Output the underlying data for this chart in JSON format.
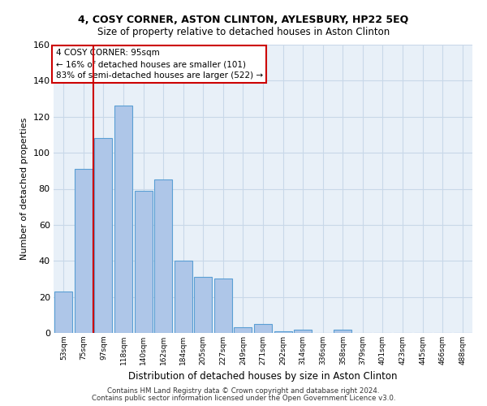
{
  "title1": "4, COSY CORNER, ASTON CLINTON, AYLESBURY, HP22 5EQ",
  "title2": "Size of property relative to detached houses in Aston Clinton",
  "xlabel": "Distribution of detached houses by size in Aston Clinton",
  "ylabel": "Number of detached properties",
  "footer1": "Contains HM Land Registry data © Crown copyright and database right 2024.",
  "footer2": "Contains public sector information licensed under the Open Government Licence v3.0.",
  "categories": [
    "53sqm",
    "75sqm",
    "97sqm",
    "118sqm",
    "140sqm",
    "162sqm",
    "184sqm",
    "205sqm",
    "227sqm",
    "249sqm",
    "271sqm",
    "292sqm",
    "314sqm",
    "336sqm",
    "358sqm",
    "379sqm",
    "401sqm",
    "423sqm",
    "445sqm",
    "466sqm",
    "488sqm"
  ],
  "values": [
    23,
    91,
    108,
    126,
    79,
    85,
    40,
    31,
    30,
    3,
    5,
    1,
    2,
    0,
    2,
    0,
    0,
    0,
    0,
    0,
    0
  ],
  "bar_color": "#aec6e8",
  "bar_edge_color": "#5a9fd4",
  "red_line_index": 2,
  "annotation_text": "4 COSY CORNER: 95sqm\n← 16% of detached houses are smaller (101)\n83% of semi-detached houses are larger (522) →",
  "annotation_box_color": "white",
  "annotation_box_edge": "#cc0000",
  "ylim": [
    0,
    160
  ],
  "yticks": [
    0,
    20,
    40,
    60,
    80,
    100,
    120,
    140,
    160
  ],
  "grid_color": "#c8d8e8",
  "bg_color": "#e8f0f8",
  "red_line_color": "#cc0000"
}
